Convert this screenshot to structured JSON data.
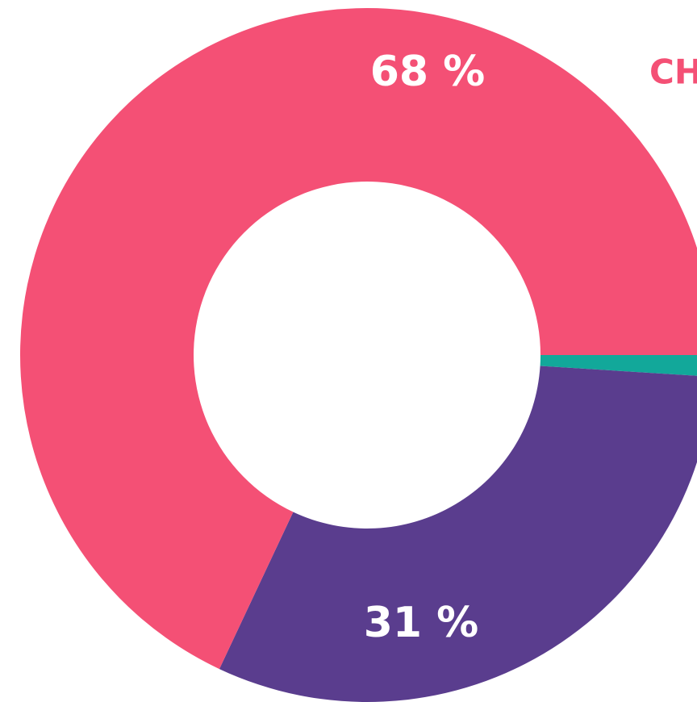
{
  "chart_data": {
    "type": "donut",
    "values": [
      1,
      31,
      68
    ],
    "value_labels": [
      null,
      "31 %",
      "68 %"
    ],
    "colors": [
      "#12a89a",
      "#5a3d8e",
      "#f45075"
    ],
    "legend_text": "CH"
  }
}
